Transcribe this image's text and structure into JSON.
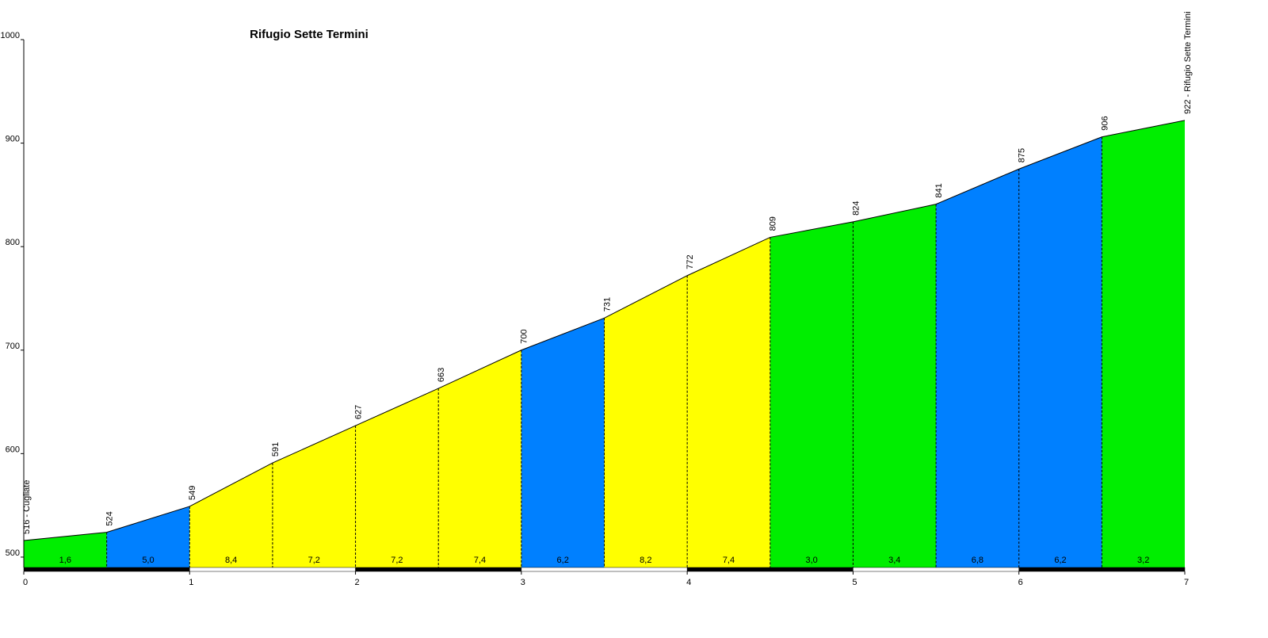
{
  "chart_data": {
    "type": "elevation-profile",
    "title": "Rifugio Sette Termini",
    "x": [
      0,
      0.5,
      1,
      1.5,
      2,
      2.5,
      3,
      3.5,
      4,
      4.5,
      5,
      5.5,
      6,
      6.5,
      7
    ],
    "series": [
      {
        "name": "elevation",
        "color": "#000000",
        "values": [
          516,
          524,
          549,
          591,
          627,
          663,
          700,
          731,
          772,
          809,
          824,
          841,
          875,
          906,
          922
        ],
        "value_labels": [
          "516 - Cugliate",
          "524",
          "549",
          "591",
          "627",
          "663",
          "700",
          "731",
          "772",
          "809",
          "824",
          "841",
          "875",
          "906",
          "922 - Rifugio Sette Termini"
        ]
      }
    ],
    "segments": {
      "values": [
        1.6,
        5.0,
        8.4,
        7.2,
        7.2,
        7.4,
        6.2,
        8.2,
        7.4,
        3.0,
        3.4,
        6.8,
        6.2,
        3.2
      ],
      "value_labels": [
        "1,6",
        "5,0",
        "8,4",
        "7,2",
        "7,2",
        "7,4",
        "6,2",
        "8,2",
        "7,4",
        "3,0",
        "3,4",
        "6,8",
        "6,2",
        "3,2"
      ],
      "colors": [
        "#00ee00",
        "#0080ff",
        "#ffff00",
        "#ffff00",
        "#ffff00",
        "#ffff00",
        "#0080ff",
        "#ffff00",
        "#ffff00",
        "#00ee00",
        "#00ee00",
        "#0080ff",
        "#0080ff",
        "#00ee00"
      ]
    },
    "xlim": [
      0,
      7
    ],
    "xticks": [
      0,
      1,
      2,
      3,
      4,
      5,
      6,
      7
    ],
    "ylim": [
      490,
      1000
    ],
    "yticks": [
      500,
      600,
      700,
      800,
      900,
      1000
    ]
  }
}
